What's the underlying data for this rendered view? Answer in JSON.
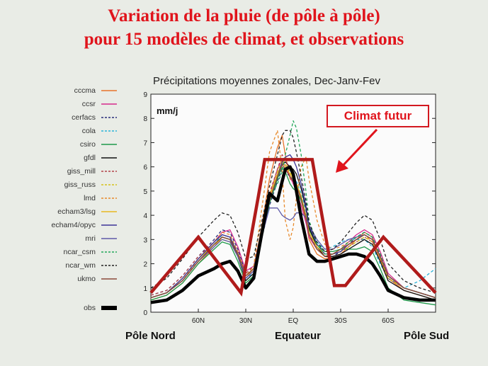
{
  "slide": {
    "title_line1": "Variation de la pluie (de pôle à pôle)",
    "title_line2": "pour 15 modèles de climat, et observations"
  },
  "labels": {
    "north": "Pôle Nord",
    "equator": "Equateur",
    "south": "Pôle Sud",
    "annotation": "Climat futur"
  },
  "colors": {
    "title": "#e0141c",
    "overlay": "#b01b1b",
    "obs": "#000000"
  },
  "chart_data": {
    "type": "line",
    "title": "Précipitations moyennes zonales, Dec-Janv-Fev",
    "ylabel": "mm/j",
    "xlim": [
      90,
      -90
    ],
    "ylim": [
      0,
      9
    ],
    "yticks": [
      0,
      1,
      2,
      3,
      4,
      5,
      6,
      7,
      8,
      9
    ],
    "xticks": [
      {
        "value": 60,
        "label": "60N"
      },
      {
        "value": 30,
        "label": "30N"
      },
      {
        "value": 0,
        "label": "EQ"
      },
      {
        "value": -30,
        "label": "30S"
      },
      {
        "value": -60,
        "label": "60S"
      }
    ],
    "x": [
      90,
      80,
      70,
      60,
      50,
      45,
      40,
      35,
      30,
      25,
      20,
      15,
      10,
      7,
      5,
      2,
      0,
      -2,
      -5,
      -8,
      -10,
      -15,
      -20,
      -25,
      -30,
      -35,
      -40,
      -45,
      -50,
      -55,
      -60,
      -70,
      -80,
      -90
    ],
    "series": [
      {
        "name": "cccma",
        "color": "#e8742a",
        "dash": "solid",
        "values": [
          0.5,
          0.7,
          1.2,
          2.0,
          2.7,
          3.1,
          3.0,
          2.3,
          1.4,
          1.8,
          3.5,
          5.5,
          6.8,
          7.3,
          6.5,
          5.5,
          5.4,
          5.3,
          4.6,
          3.8,
          3.0,
          2.4,
          2.2,
          2.3,
          2.4,
          2.7,
          3.0,
          3.3,
          3.1,
          2.2,
          1.4,
          0.9,
          0.7,
          0.5
        ]
      },
      {
        "name": "ccsr",
        "color": "#d52a8c",
        "dash": "solid",
        "values": [
          0.6,
          0.8,
          1.4,
          2.2,
          2.9,
          3.3,
          3.4,
          2.7,
          1.7,
          1.9,
          3.3,
          4.8,
          5.9,
          6.3,
          6.0,
          5.6,
          5.3,
          5.0,
          4.4,
          3.7,
          3.1,
          2.6,
          2.3,
          2.4,
          2.6,
          2.9,
          3.2,
          3.4,
          3.2,
          2.5,
          1.6,
          1.0,
          0.8,
          0.6
        ]
      },
      {
        "name": "cerfacs",
        "color": "#2b2f7a",
        "dash": "4,3",
        "values": [
          0.7,
          0.9,
          1.5,
          2.3,
          3.0,
          3.4,
          3.3,
          2.6,
          1.6,
          1.7,
          3.0,
          4.4,
          5.4,
          5.9,
          5.8,
          5.6,
          5.5,
          5.3,
          4.8,
          4.0,
          3.3,
          2.6,
          2.3,
          2.3,
          2.5,
          2.8,
          3.1,
          3.3,
          3.1,
          2.4,
          1.5,
          1.0,
          0.8,
          0.6
        ]
      },
      {
        "name": "cola",
        "color": "#2ab3d8",
        "dash": "4,3",
        "values": [
          0.6,
          0.8,
          1.3,
          2.1,
          2.8,
          3.2,
          3.1,
          2.4,
          1.4,
          1.6,
          3.2,
          4.7,
          5.7,
          6.3,
          6.1,
          5.8,
          5.6,
          5.4,
          4.9,
          4.2,
          3.5,
          2.9,
          2.6,
          2.7,
          2.9,
          3.0,
          3.0,
          3.0,
          2.7,
          2.0,
          1.4,
          1.0,
          1.3,
          1.8
        ]
      },
      {
        "name": "csiro",
        "color": "#1e9a4a",
        "dash": "solid",
        "values": [
          0.5,
          0.7,
          1.2,
          2.0,
          2.6,
          2.9,
          2.8,
          2.1,
          1.2,
          1.5,
          3.0,
          4.5,
          5.5,
          6.0,
          5.8,
          5.3,
          5.1,
          5.0,
          4.6,
          4.0,
          3.4,
          2.8,
          2.5,
          2.5,
          2.6,
          2.6,
          2.6,
          2.7,
          2.5,
          1.8,
          1.0,
          0.5,
          0.4,
          0.3
        ]
      },
      {
        "name": "gfdl",
        "color": "#111111",
        "dash": "solid",
        "values": [
          0.6,
          0.8,
          1.3,
          2.1,
          2.8,
          3.1,
          3.0,
          2.3,
          1.3,
          1.6,
          3.1,
          4.6,
          5.6,
          6.1,
          6.2,
          6.0,
          5.9,
          5.7,
          5.1,
          4.3,
          3.5,
          2.7,
          2.3,
          2.3,
          2.4,
          2.6,
          2.8,
          3.0,
          2.8,
          2.1,
          1.3,
          0.9,
          0.7,
          0.5
        ]
      },
      {
        "name": "giss_mill",
        "color": "#b2434a",
        "dash": "4,3",
        "values": [
          0.7,
          0.9,
          1.5,
          2.3,
          2.9,
          3.2,
          3.1,
          2.5,
          1.6,
          1.9,
          3.4,
          4.9,
          5.9,
          6.5,
          6.3,
          5.9,
          5.6,
          5.3,
          4.7,
          3.9,
          3.2,
          2.6,
          2.3,
          2.4,
          2.5,
          2.7,
          2.9,
          3.1,
          2.9,
          2.2,
          1.4,
          1.0,
          0.8,
          0.6
        ]
      },
      {
        "name": "giss_russ",
        "color": "#d6c21a",
        "dash": "4,3",
        "values": [
          0.6,
          0.8,
          1.3,
          2.1,
          2.8,
          3.1,
          3.0,
          2.4,
          1.5,
          1.8,
          3.3,
          4.8,
          5.8,
          6.3,
          6.1,
          5.8,
          5.5,
          5.3,
          4.7,
          3.9,
          3.2,
          2.6,
          2.3,
          2.4,
          2.5,
          2.7,
          2.9,
          3.1,
          2.9,
          2.2,
          1.4,
          1.0,
          0.8,
          0.6
        ]
      },
      {
        "name": "lmd",
        "color": "#e88a2c",
        "dash": "4,3",
        "values": [
          0.6,
          0.8,
          1.3,
          2.2,
          2.9,
          3.3,
          3.2,
          2.5,
          1.5,
          1.9,
          4.2,
          6.6,
          7.5,
          5.8,
          3.8,
          3.0,
          3.5,
          4.7,
          6.0,
          6.4,
          5.5,
          3.8,
          2.8,
          2.6,
          2.7,
          2.9,
          3.1,
          3.2,
          2.9,
          2.2,
          1.5,
          1.0,
          0.8,
          0.6
        ]
      },
      {
        "name": "echam3/lsg",
        "color": "#e8b820",
        "dash": "solid",
        "values": [
          0.6,
          0.8,
          1.4,
          2.2,
          2.8,
          3.0,
          2.9,
          2.3,
          1.5,
          1.8,
          3.2,
          4.7,
          5.7,
          6.2,
          6.0,
          5.7,
          5.5,
          5.3,
          4.8,
          4.0,
          3.3,
          2.7,
          2.4,
          2.4,
          2.6,
          2.8,
          3.0,
          3.2,
          3.0,
          2.3,
          1.5,
          1.0,
          0.8,
          0.6
        ]
      },
      {
        "name": "echam4/opyc",
        "color": "#3d3597",
        "dash": "solid",
        "values": [
          0.6,
          0.8,
          1.4,
          2.2,
          2.9,
          3.2,
          3.1,
          2.4,
          1.4,
          1.7,
          3.1,
          4.6,
          5.6,
          6.2,
          6.4,
          6.5,
          6.3,
          6.0,
          5.3,
          4.4,
          3.6,
          2.8,
          2.4,
          2.4,
          2.5,
          2.8,
          3.0,
          3.2,
          3.0,
          2.3,
          1.5,
          1.0,
          0.8,
          0.6
        ]
      },
      {
        "name": "mri",
        "color": "#5f5aa8",
        "dash": "solid",
        "values": [
          0.6,
          0.8,
          1.3,
          2.1,
          2.7,
          3.0,
          2.9,
          2.3,
          1.4,
          1.7,
          3.1,
          4.3,
          4.3,
          4.0,
          3.9,
          3.8,
          3.9,
          4.1,
          4.1,
          3.9,
          3.6,
          3.0,
          2.6,
          2.6,
          2.8,
          3.0,
          3.1,
          3.2,
          3.0,
          2.3,
          1.5,
          1.0,
          0.8,
          0.6
        ]
      },
      {
        "name": "ncar_csm",
        "color": "#23a85a",
        "dash": "4,3",
        "values": [
          0.6,
          0.8,
          1.3,
          2.1,
          2.8,
          3.1,
          3.0,
          2.4,
          1.5,
          1.8,
          3.3,
          4.7,
          5.3,
          5.8,
          6.5,
          7.3,
          7.9,
          7.6,
          6.5,
          5.0,
          3.8,
          2.8,
          2.4,
          2.4,
          2.6,
          2.9,
          3.1,
          3.3,
          3.1,
          2.4,
          1.5,
          1.0,
          0.8,
          0.6
        ]
      },
      {
        "name": "ncar_wm",
        "color": "#222222",
        "dash": "4,3",
        "values": [
          1.0,
          1.4,
          2.2,
          3.1,
          3.8,
          4.1,
          4.0,
          3.3,
          2.2,
          2.3,
          3.7,
          5.2,
          6.5,
          7.3,
          7.5,
          7.5,
          7.2,
          6.6,
          5.6,
          4.6,
          3.7,
          2.9,
          2.5,
          2.6,
          2.9,
          3.3,
          3.7,
          4.0,
          3.8,
          3.0,
          2.0,
          1.3,
          1.0,
          0.8
        ]
      },
      {
        "name": "ukmo",
        "color": "#8a4a3a",
        "dash": "solid",
        "values": [
          0.6,
          0.8,
          1.3,
          2.1,
          2.8,
          3.1,
          3.0,
          2.4,
          1.5,
          1.8,
          3.2,
          4.6,
          5.6,
          6.1,
          5.9,
          5.6,
          5.4,
          5.2,
          4.7,
          3.9,
          3.2,
          2.6,
          2.3,
          2.4,
          2.6,
          2.8,
          3.0,
          3.2,
          3.0,
          2.3,
          1.5,
          1.0,
          0.8,
          0.6
        ]
      }
    ],
    "observations": {
      "name": "obs",
      "color": "#000000",
      "values": [
        0.4,
        0.5,
        0.9,
        1.5,
        1.8,
        2.0,
        2.1,
        1.7,
        1.0,
        1.4,
        3.2,
        4.9,
        4.6,
        5.4,
        5.9,
        6.0,
        5.7,
        5.0,
        3.9,
        3.0,
        2.4,
        2.1,
        2.1,
        2.2,
        2.3,
        2.4,
        2.4,
        2.3,
        2.0,
        1.5,
        0.9,
        0.6,
        0.5,
        0.5
      ]
    },
    "overlay": {
      "name": "Climat futur",
      "color": "#b01b1b",
      "x": [
        90,
        60,
        33,
        22,
        18,
        3,
        -12,
        -16,
        -26,
        -33,
        -57,
        -90
      ],
      "values": [
        0.8,
        3.1,
        0.8,
        4.8,
        6.3,
        6.3,
        6.3,
        4.8,
        1.1,
        1.1,
        3.1,
        0.8
      ]
    }
  }
}
